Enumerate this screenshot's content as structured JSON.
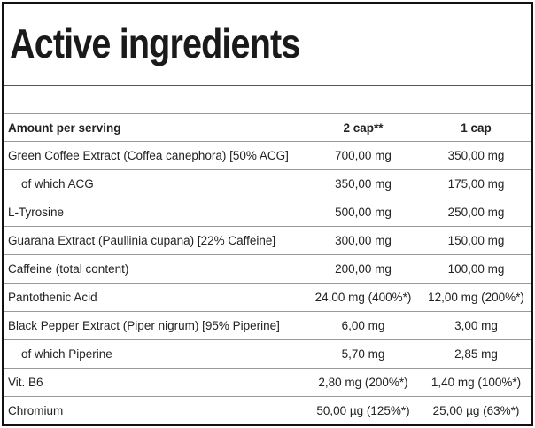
{
  "table": {
    "title": "Active ingredients",
    "header": [
      "Amount per serving",
      "2 cap**",
      "1 cap"
    ],
    "rows": [
      [
        "Green Coffee Extract (Coffea canephora) [50% ACG]",
        "700,00 mg",
        "350,00 mg"
      ],
      [
        "of which ACG",
        "350,00 mg",
        "175,00 mg"
      ],
      [
        "L-Tyrosine",
        "500,00 mg",
        "250,00 mg"
      ],
      [
        "Guarana Extract (Paullinia cupana) [22% Caffeine]",
        "300,00 mg",
        "150,00 mg"
      ],
      [
        "Caffeine (total content)",
        "200,00 mg",
        "100,00 mg"
      ],
      [
        "Pantothenic Acid",
        "24,00 mg (400%*)",
        "12,00 mg (200%*)"
      ],
      [
        "Black Pepper Extract (Piper nigrum) [95% Piperine]",
        "6,00 mg",
        "3,00 mg"
      ],
      [
        "of which Piperine",
        "5,70 mg",
        "2,85 mg"
      ],
      [
        "Vit. B6",
        "2,80 mg (200%*)",
        "1,40 mg (100%*)"
      ],
      [
        "Chromium",
        "50,00 µg (125%*)",
        "25,00 µg (63%*)"
      ]
    ]
  }
}
